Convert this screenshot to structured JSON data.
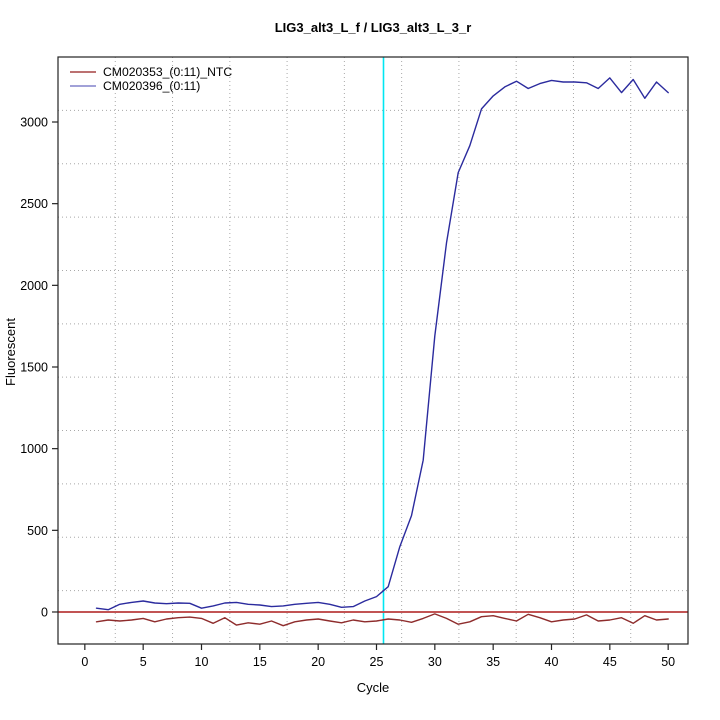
{
  "window": {
    "background": "#ffffff"
  },
  "chart_data": {
    "type": "line",
    "title": "LIG3_alt3_L_f / LIG3_alt3_L_3_r",
    "xlabel": "Cycle",
    "ylabel": "Fluorescent",
    "x": [
      1,
      2,
      3,
      4,
      5,
      6,
      7,
      8,
      9,
      10,
      11,
      12,
      13,
      14,
      15,
      16,
      17,
      18,
      19,
      20,
      21,
      22,
      23,
      24,
      25,
      26,
      27,
      28,
      29,
      30,
      31,
      32,
      33,
      34,
      35,
      36,
      37,
      38,
      39,
      40,
      41,
      42,
      43,
      44,
      45,
      46,
      47,
      48,
      49,
      50
    ],
    "series": [
      {
        "name": "CM020353_(0:11)_NTC",
        "color": "#8e2c2c",
        "legend_color": "#a54242",
        "values": [
          -60,
          -49,
          -55,
          -49,
          -39,
          -60,
          -43,
          -35,
          -31,
          -39,
          -69,
          -35,
          -80,
          -66,
          -75,
          -55,
          -84,
          -60,
          -49,
          -43,
          -55,
          -66,
          -49,
          -60,
          -55,
          -43,
          -49,
          -63,
          -39,
          -12,
          -39,
          -75,
          -60,
          -29,
          -23,
          -39,
          -55,
          -14,
          -35,
          -60,
          -49,
          -43,
          -18,
          -55,
          -49,
          -35,
          -69,
          -23,
          -49,
          -43
        ]
      },
      {
        "name": "CM020396_(0:11)",
        "color": "#2b2b9e",
        "legend_color": "#8282cc",
        "values": [
          23,
          14,
          47,
          59,
          67,
          55,
          51,
          55,
          53,
          23,
          37,
          55,
          59,
          47,
          43,
          33,
          37,
          47,
          53,
          59,
          47,
          29,
          33,
          67,
          94,
          155,
          400,
          590,
          930,
          1690,
          2260,
          2690,
          2855,
          3080,
          3160,
          3215,
          3250,
          3205,
          3235,
          3255,
          3245,
          3245,
          3240,
          3205,
          3270,
          3180,
          3260,
          3145,
          3245,
          3180
        ]
      }
    ],
    "xlim": [
      -2.3,
      51.7
    ],
    "ylim": [
      -196,
      3398
    ],
    "x_ticks": [
      0,
      5,
      10,
      15,
      20,
      25,
      30,
      35,
      40,
      45,
      50
    ],
    "y_ticks": [
      0,
      500,
      1000,
      1500,
      2000,
      2500,
      3000
    ],
    "grid": {
      "nx": 11,
      "ny": 11,
      "color": "#a8a8a8",
      "style": "dotted"
    },
    "threshold_line": {
      "y": 0,
      "color": "#c25454"
    },
    "ct_line": {
      "x": 25.6,
      "color": "#00e6f2"
    },
    "legend": {
      "position": "top-left",
      "entries": [
        "CM020353_(0:11)_NTC",
        "CM020396_(0:11)"
      ]
    },
    "axis_color": "#222222"
  }
}
